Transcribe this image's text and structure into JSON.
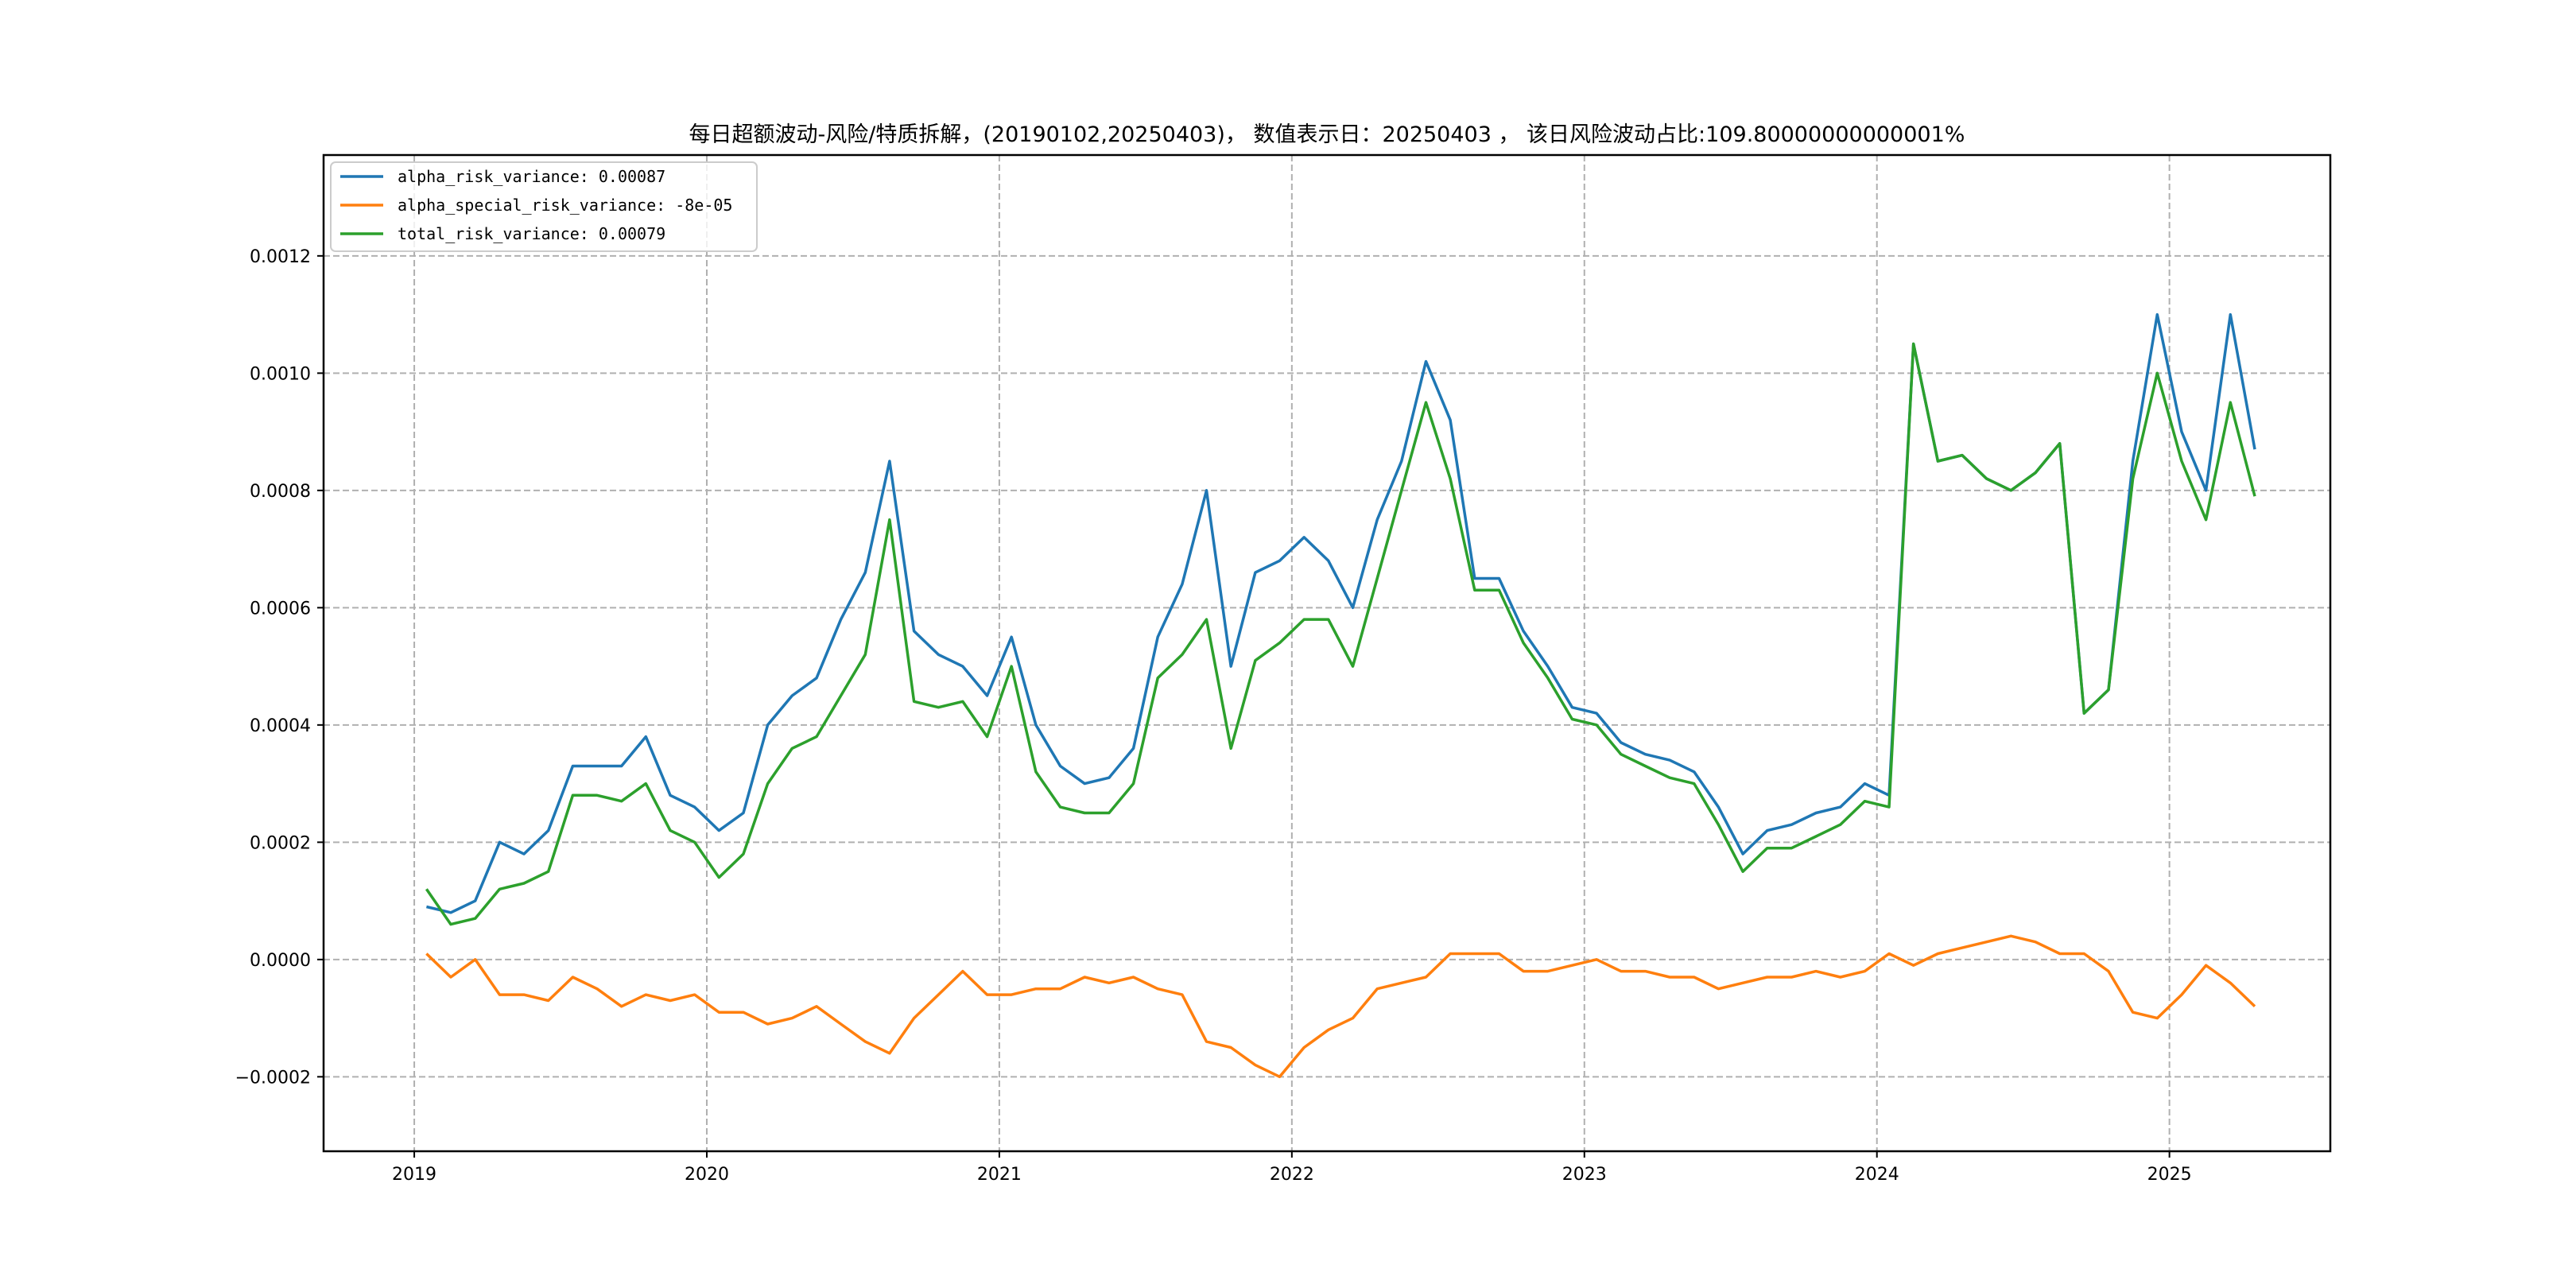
{
  "chart_data": {
    "type": "line",
    "title": "每日超额波动-风险/特质拆解，(20190102,20250403)， 数值表示日：20250403 ， 该日风险波动占比:109.80000000000001%",
    "xlabel": "",
    "ylabel": "",
    "x_start": "2019-01",
    "x_step": "month",
    "xlim": [
      2018.69,
      2025.55
    ],
    "ylim": [
      -0.000327,
      0.001372
    ],
    "grid": true,
    "legend_position": "top-left",
    "x_ticks": [
      2019,
      2020,
      2021,
      2022,
      2023,
      2024,
      2025
    ],
    "x_tick_labels": [
      "2019",
      "2020",
      "2021",
      "2022",
      "2023",
      "2024",
      "2025"
    ],
    "y_ticks": [
      -0.0002,
      0.0,
      0.0002,
      0.0004,
      0.0006,
      0.0008,
      0.001,
      0.0012
    ],
    "y_tick_labels": [
      "−0.0002",
      "0.0000",
      "0.0002",
      "0.0004",
      "0.0006",
      "0.0008",
      "0.0010",
      "0.0012"
    ],
    "series": [
      {
        "name": "alpha_risk_variance",
        "legend": "alpha_risk_variance: 0.00087",
        "color": "#1f77b4",
        "values": [
          9e-05,
          8e-05,
          0.0001,
          0.0002,
          0.00018,
          0.00022,
          0.00033,
          0.00033,
          0.00033,
          0.00038,
          0.00028,
          0.00026,
          0.00022,
          0.00025,
          0.0004,
          0.00045,
          0.00048,
          0.00058,
          0.00066,
          0.00085,
          0.00056,
          0.00052,
          0.0005,
          0.00045,
          0.00055,
          0.0004,
          0.00033,
          0.0003,
          0.00031,
          0.00036,
          0.00055,
          0.00064,
          0.0008,
          0.0005,
          0.00066,
          0.00068,
          0.00072,
          0.00068,
          0.0006,
          0.00075,
          0.00085,
          0.00102,
          0.00092,
          0.00065,
          0.00065,
          0.00056,
          0.0005,
          0.00043,
          0.00042,
          0.00037,
          0.00035,
          0.00034,
          0.00032,
          0.00026,
          0.00018,
          0.00022,
          0.00023,
          0.00025,
          0.00026,
          0.0003,
          0.00028,
          0.00105,
          0.00085,
          0.00086,
          0.00082,
          0.0008,
          0.00083,
          0.00088,
          0.00042,
          0.00046,
          0.00085,
          0.0011,
          0.0009,
          0.0008,
          0.0011,
          0.00087
        ]
      },
      {
        "name": "alpha_special_risk_variance",
        "legend": "alpha_special_risk_variance: -8e-05",
        "color": "#ff7f0e",
        "values": [
          1e-05,
          -3e-05,
          0.0,
          -6e-05,
          -6e-05,
          -7e-05,
          -3e-05,
          -5e-05,
          -8e-05,
          -6e-05,
          -7e-05,
          -6e-05,
          -9e-05,
          -9e-05,
          -0.00011,
          -0.0001,
          -8e-05,
          -0.00011,
          -0.00014,
          -0.00016,
          -0.0001,
          -6e-05,
          -2e-05,
          -6e-05,
          -6e-05,
          -5e-05,
          -5e-05,
          -3e-05,
          -4e-05,
          -3e-05,
          -5e-05,
          -6e-05,
          -0.00014,
          -0.00015,
          -0.00018,
          -0.0002,
          -0.00015,
          -0.00012,
          -0.0001,
          -5e-05,
          -4e-05,
          -3e-05,
          1e-05,
          1e-05,
          1e-05,
          -2e-05,
          -2e-05,
          -1e-05,
          0.0,
          -2e-05,
          -2e-05,
          -3e-05,
          -3e-05,
          -5e-05,
          -4e-05,
          -3e-05,
          -3e-05,
          -2e-05,
          -3e-05,
          -2e-05,
          1e-05,
          -1e-05,
          1e-05,
          2e-05,
          3e-05,
          4e-05,
          3e-05,
          1e-05,
          1e-05,
          -2e-05,
          -9e-05,
          -0.0001,
          -6e-05,
          -1e-05,
          -4e-05,
          -8e-05
        ]
      },
      {
        "name": "total_risk_variance",
        "legend": "total_risk_variance: 0.00079",
        "color": "#2ca02c",
        "values": [
          0.00012,
          6e-05,
          7e-05,
          0.00012,
          0.00013,
          0.00015,
          0.00028,
          0.00028,
          0.00027,
          0.0003,
          0.00022,
          0.0002,
          0.00014,
          0.00018,
          0.0003,
          0.00036,
          0.00038,
          0.00045,
          0.00052,
          0.00075,
          0.00044,
          0.00043,
          0.00044,
          0.00038,
          0.0005,
          0.00032,
          0.00026,
          0.00025,
          0.00025,
          0.0003,
          0.00048,
          0.00052,
          0.00058,
          0.00036,
          0.00051,
          0.00054,
          0.00058,
          0.00058,
          0.0005,
          0.00065,
          0.0008,
          0.00095,
          0.00082,
          0.00063,
          0.00063,
          0.00054,
          0.00048,
          0.00041,
          0.0004,
          0.00035,
          0.00033,
          0.00031,
          0.0003,
          0.00023,
          0.00015,
          0.00019,
          0.00019,
          0.00021,
          0.00023,
          0.00027,
          0.00026,
          0.00105,
          0.00085,
          0.00086,
          0.00082,
          0.0008,
          0.00083,
          0.00088,
          0.00042,
          0.00046,
          0.00082,
          0.001,
          0.00085,
          0.00075,
          0.00095,
          0.00079
        ]
      }
    ]
  }
}
